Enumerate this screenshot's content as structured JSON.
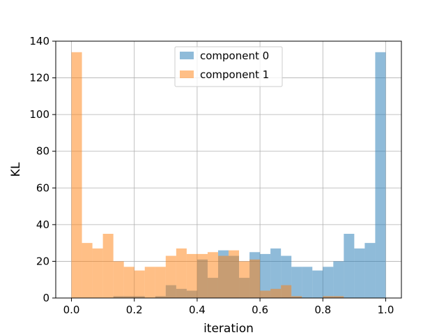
{
  "chart_data": {
    "type": "bar",
    "subtype": "overlapping histogram",
    "title": "",
    "xlabel": "iteration",
    "ylabel": "KL",
    "xlim": [
      -0.05,
      1.05
    ],
    "ylim": [
      0,
      140
    ],
    "xticks": [
      "0.0",
      "0.2",
      "0.4",
      "0.6",
      "0.8",
      "1.0"
    ],
    "yticks": [
      "0",
      "20",
      "40",
      "60",
      "80",
      "100",
      "120",
      "140"
    ],
    "grid": true,
    "legend_position": "top-center",
    "bins": 30,
    "bin_range": [
      0.0,
      1.0
    ],
    "series": [
      {
        "name": "component 0",
        "color": "#1f77b4",
        "alpha": 0.5,
        "values": [
          0,
          0,
          0,
          0,
          1,
          1,
          1,
          0,
          1,
          7,
          5,
          4,
          21,
          11,
          26,
          23,
          11,
          25,
          24,
          27,
          23,
          17,
          17,
          15,
          17,
          20,
          35,
          27,
          30,
          134
        ]
      },
      {
        "name": "component 1",
        "color": "#ff7f0e",
        "alpha": 0.5,
        "values": [
          134,
          30,
          27,
          35,
          20,
          17,
          15,
          17,
          17,
          23,
          27,
          24,
          24,
          25,
          23,
          26,
          20,
          21,
          4,
          5,
          7,
          1,
          0,
          0,
          1,
          1,
          0,
          0,
          0,
          0
        ]
      }
    ]
  }
}
